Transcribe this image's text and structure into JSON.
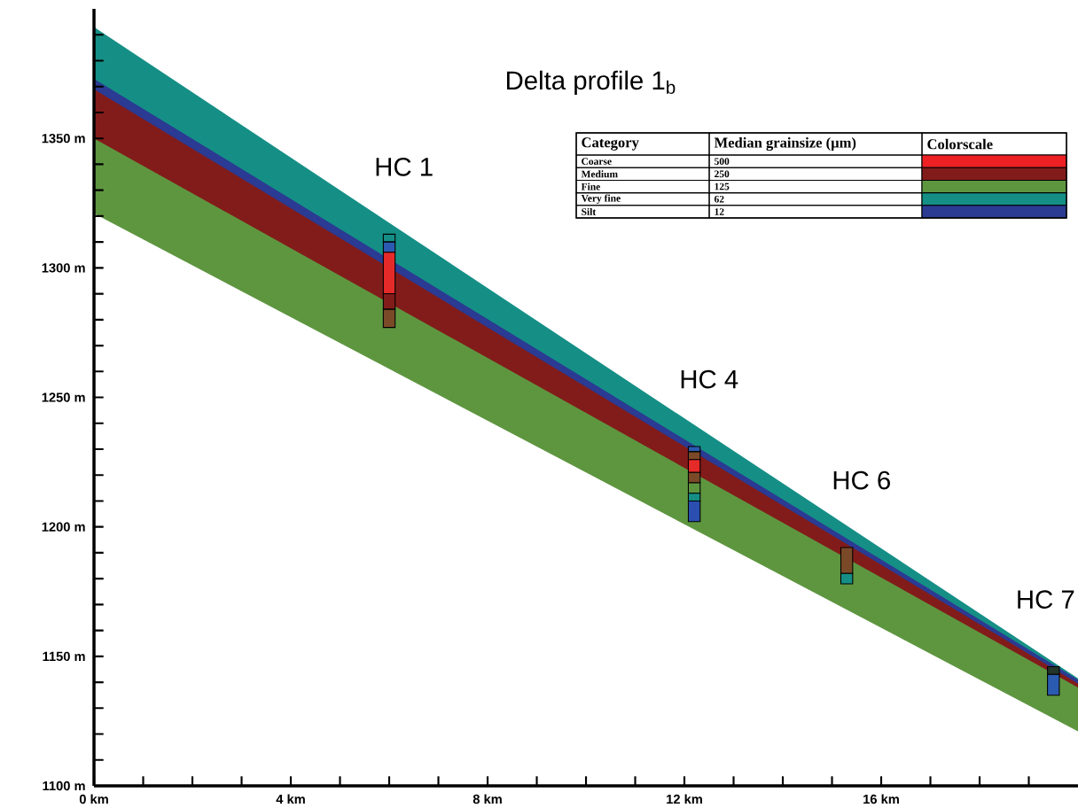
{
  "chart_data": [
    {
      "type": "area",
      "title": "Delta profile 1$_{b}$",
      "xlim": [
        0,
        20
      ],
      "ylim": [
        1100,
        1400
      ],
      "xticks": [
        {
          "value": 0,
          "label": "0 km"
        },
        {
          "value": 1,
          "label": null
        },
        {
          "value": 2,
          "label": null
        },
        {
          "value": 3,
          "label": null
        },
        {
          "value": 4,
          "label": "4 km"
        },
        {
          "value": 5,
          "label": null
        },
        {
          "value": 6,
          "label": null
        },
        {
          "value": 7,
          "label": null
        },
        {
          "value": 8,
          "label": "8 km"
        },
        {
          "value": 9,
          "label": null
        },
        {
          "value": 10,
          "label": null
        },
        {
          "value": 11,
          "label": null
        },
        {
          "value": 12,
          "label": "12 km"
        },
        {
          "value": 13,
          "label": null
        },
        {
          "value": 14,
          "label": null
        },
        {
          "value": 15,
          "label": null
        },
        {
          "value": 16,
          "label": "16 km"
        },
        {
          "value": 17,
          "label": null
        },
        {
          "value": 18,
          "label": null
        },
        {
          "value": 19,
          "label": null
        }
      ],
      "yticks": [
        {
          "value": 1100,
          "label": "1100 m"
        },
        {
          "value": 1110,
          "label": null
        },
        {
          "value": 1120,
          "label": null
        },
        {
          "value": 1130,
          "label": null
        },
        {
          "value": 1140,
          "label": null
        },
        {
          "value": 1150,
          "label": "1150 m"
        },
        {
          "value": 1160,
          "label": null
        },
        {
          "value": 1170,
          "label": null
        },
        {
          "value": 1180,
          "label": null
        },
        {
          "value": 1190,
          "label": null
        },
        {
          "value": 1200,
          "label": "1200 m"
        },
        {
          "value": 1210,
          "label": null
        },
        {
          "value": 1220,
          "label": null
        },
        {
          "value": 1230,
          "label": null
        },
        {
          "value": 1240,
          "label": null
        },
        {
          "value": 1250,
          "label": "1250 m"
        },
        {
          "value": 1260,
          "label": null
        },
        {
          "value": 1270,
          "label": null
        },
        {
          "value": 1280,
          "label": null
        },
        {
          "value": 1290,
          "label": null
        },
        {
          "value": 1300,
          "label": "1300 m"
        },
        {
          "value": 1310,
          "label": null
        },
        {
          "value": 1320,
          "label": null
        },
        {
          "value": 1330,
          "label": null
        },
        {
          "value": 1340,
          "label": null
        },
        {
          "value": 1350,
          "label": "1350 m"
        },
        {
          "value": 1360,
          "label": null
        },
        {
          "value": 1370,
          "label": null
        },
        {
          "value": 1380,
          "label": null
        },
        {
          "value": 1390,
          "label": null
        }
      ],
      "series": [
        {
          "type": "area",
          "color": "#158f86",
          "x": [
            0,
            10,
            20
          ],
          "values": [
            1393,
            1267,
            1141.5
          ]
        },
        {
          "type": "area",
          "color": "#2b3a92",
          "x": [
            0,
            10,
            20
          ],
          "values": [
            1373,
            1257,
            1141
          ]
        },
        {
          "type": "area",
          "color": "#821c1a",
          "x": [
            0,
            10,
            20
          ],
          "values": [
            1369,
            1254,
            1139.5
          ]
        },
        {
          "type": "area",
          "color": "#5e9640",
          "x": [
            0,
            10,
            20
          ],
          "values": [
            1350,
            1244,
            1138
          ]
        },
        {
          "type": "area",
          "color": "#ffffff",
          "x": [
            0,
            10,
            20
          ],
          "values": [
            1321,
            1221,
            1121
          ]
        },
        {
          "type": "bar",
          "x": [
            6.0,
            12.2,
            15.3,
            19.5
          ],
          "base": [
            1310,
            1229,
            1182,
            1143
          ],
          "values": [
            3,
            2,
            10,
            3
          ],
          "colors": [
            "#158f86",
            "#2b5bb0",
            "#7a4a28",
            "#24352a"
          ]
        },
        {
          "type": "bar",
          "x": [
            6.0,
            12.2,
            15.3,
            19.5
          ],
          "base": [
            1306,
            1226,
            1178,
            1135
          ],
          "values": [
            4,
            3,
            4,
            8
          ],
          "colors": [
            "#2b5bb0",
            "#7a4a28",
            "#158f86",
            "#2b5bb0"
          ]
        },
        {
          "type": "bar",
          "x": [
            6.0,
            12.2
          ],
          "base": [
            1290,
            1221
          ],
          "values": [
            16,
            5
          ],
          "colors": [
            "#e52a2a",
            "#e52a2a"
          ]
        },
        {
          "type": "bar",
          "x": [
            6.0,
            12.2
          ],
          "base": [
            1284,
            1217
          ],
          "values": [
            6,
            4
          ],
          "colors": [
            "#821c1a",
            "#7a4a28"
          ]
        },
        {
          "type": "bar",
          "x": [
            6.0,
            12.2
          ],
          "base": [
            1277,
            1213
          ],
          "values": [
            7,
            4
          ],
          "colors": [
            "#7a4a28",
            "#5e9640"
          ]
        },
        {
          "type": "bar",
          "x": [
            12.2
          ],
          "base": [
            1210
          ],
          "values": [
            3
          ],
          "colors": [
            "#158f86"
          ]
        },
        {
          "type": "bar",
          "x": [
            12.2
          ],
          "base": [
            1202
          ],
          "values": [
            8
          ],
          "colors": [
            "#2b4fb0"
          ]
        }
      ],
      "annotations": [
        "HC 1",
        "HC 4",
        "HC 6",
        "HC 7"
      ]
    },
    {
      "type": "other",
      "annotations": [
        "Category",
        "Median grainsize (µm)",
        "Colorscale"
      ],
      "categories": [
        "Coarse",
        "Medium",
        "Fine",
        "Very fine",
        "Silt"
      ],
      "value_labels": [
        "500",
        "250",
        "125",
        "62",
        "12"
      ],
      "colors": [
        "#ed2024",
        "#821c1a",
        "#5e9640",
        "#158f86",
        "#2b3a92"
      ]
    }
  ]
}
